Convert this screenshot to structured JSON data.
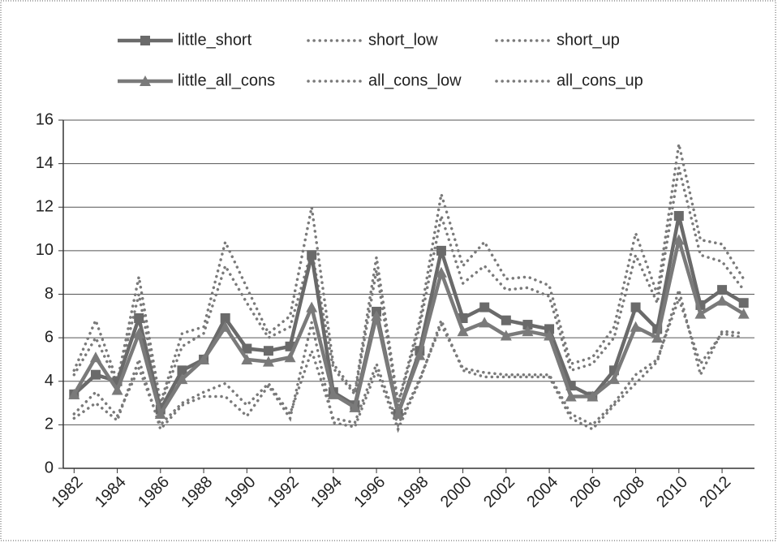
{
  "chart_data": {
    "type": "line",
    "x": [
      1982,
      1983,
      1984,
      1985,
      1986,
      1987,
      1988,
      1989,
      1990,
      1991,
      1992,
      1993,
      1994,
      1995,
      1996,
      1997,
      1998,
      1999,
      2000,
      2001,
      2002,
      2003,
      2004,
      2005,
      2006,
      2007,
      2008,
      2009,
      2010,
      2011,
      2012,
      2013
    ],
    "xlim": [
      1981.5,
      2013.5
    ],
    "xticks": [
      1982,
      1984,
      1986,
      1988,
      1990,
      1992,
      1994,
      1996,
      1998,
      2000,
      2002,
      2004,
      2006,
      2008,
      2010,
      2012
    ],
    "ylim": [
      0,
      16
    ],
    "yticks": [
      0,
      2,
      4,
      6,
      8,
      10,
      12,
      14,
      16
    ],
    "grid": true,
    "series": [
      {
        "name": "little_short",
        "color": "#6a6a6a",
        "marker": "square",
        "dash": "solid",
        "values": [
          3.4,
          4.3,
          4.0,
          6.9,
          2.7,
          4.5,
          5.0,
          6.9,
          5.5,
          5.4,
          5.6,
          9.8,
          3.5,
          2.9,
          7.2,
          2.5,
          5.4,
          10.0,
          6.9,
          7.4,
          6.8,
          6.6,
          6.4,
          3.8,
          3.3,
          4.5,
          7.4,
          6.4,
          11.6,
          7.5,
          8.2,
          7.6
        ]
      },
      {
        "name": "short_low",
        "color": "#7a7a7a",
        "marker": "none",
        "dash": "dotted",
        "values": [
          2.3,
          3.0,
          2.2,
          5.0,
          1.8,
          2.9,
          3.3,
          3.3,
          2.4,
          3.8,
          2.3,
          6.7,
          2.1,
          1.9,
          4.5,
          1.8,
          4.0,
          6.8,
          4.5,
          4.2,
          4.2,
          4.2,
          4.2,
          2.3,
          1.8,
          2.9,
          3.9,
          4.9,
          8.2,
          4.3,
          6.3,
          6.2
        ]
      },
      {
        "name": "short_up",
        "color": "#7a7a7a",
        "marker": "none",
        "dash": "dotted",
        "values": [
          4.5,
          6.8,
          4.0,
          8.8,
          3.0,
          6.2,
          6.5,
          10.4,
          8.3,
          6.2,
          7.0,
          12.0,
          4.8,
          3.5,
          9.7,
          3.0,
          6.8,
          12.6,
          9.3,
          10.4,
          8.7,
          8.8,
          8.4,
          4.8,
          5.1,
          6.5,
          10.8,
          8.0,
          14.9,
          10.5,
          10.3,
          8.7
        ]
      },
      {
        "name": "little_all_cons",
        "color": "#7a7a7a",
        "marker": "triangle",
        "dash": "solid",
        "values": [
          3.4,
          5.1,
          3.6,
          6.2,
          2.5,
          4.1,
          5.0,
          6.5,
          5.0,
          4.9,
          5.1,
          7.4,
          3.4,
          2.8,
          7.0,
          2.5,
          5.2,
          9.0,
          6.3,
          6.7,
          6.1,
          6.3,
          6.1,
          3.3,
          3.3,
          4.1,
          6.5,
          6.0,
          10.5,
          7.1,
          7.7,
          7.1
        ]
      },
      {
        "name": "all_cons_low",
        "color": "#7a7a7a",
        "marker": "none",
        "dash": "dotted",
        "values": [
          2.5,
          3.5,
          2.4,
          4.6,
          2.0,
          3.0,
          3.5,
          3.9,
          2.9,
          3.9,
          2.5,
          5.4,
          2.3,
          2.1,
          4.8,
          2.0,
          4.1,
          6.6,
          4.6,
          4.4,
          4.3,
          4.3,
          4.3,
          2.5,
          2.0,
          3.0,
          4.3,
          5.0,
          7.8,
          4.8,
          6.2,
          6.0
        ]
      },
      {
        "name": "all_cons_up",
        "color": "#7a7a7a",
        "marker": "none",
        "dash": "dotted",
        "values": [
          4.3,
          6.0,
          3.9,
          8.0,
          2.9,
          5.6,
          6.2,
          9.3,
          7.6,
          6.0,
          6.5,
          10.0,
          4.6,
          3.4,
          9.1,
          2.9,
          6.5,
          11.6,
          8.5,
          9.3,
          8.2,
          8.3,
          7.9,
          4.5,
          4.8,
          6.0,
          9.8,
          7.6,
          13.8,
          9.8,
          9.5,
          8.2
        ]
      }
    ]
  }
}
